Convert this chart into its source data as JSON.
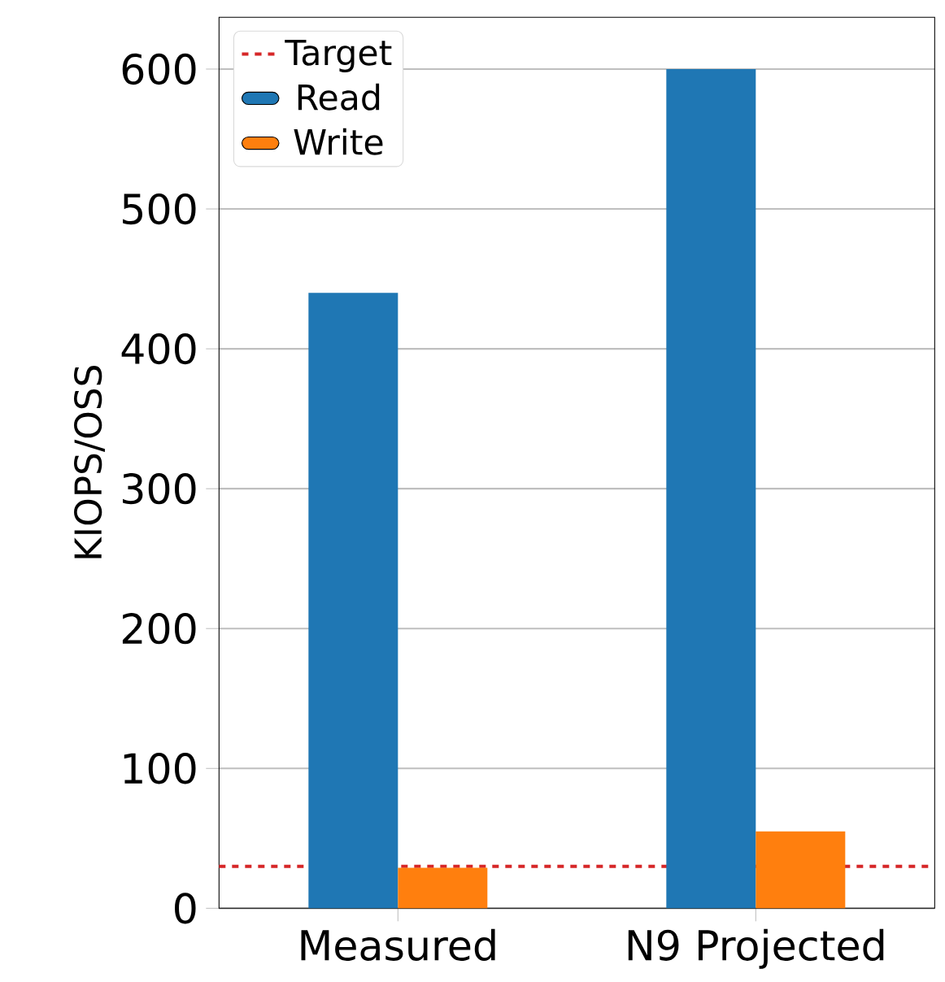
{
  "chart_data": {
    "type": "bar",
    "ylabel": "KIOPS/OSS",
    "categories": [
      "Measured",
      "N9 Projected"
    ],
    "series": [
      {
        "name": "Read",
        "color": "#1f77b4",
        "values": [
          440,
          600
        ]
      },
      {
        "name": "Write",
        "color": "#ff7f0e",
        "values": [
          29,
          55
        ]
      }
    ],
    "ref_lines": [
      {
        "axis": "y",
        "value": 30,
        "label": "Target",
        "color": "#d62728",
        "line_style": "dashed"
      }
    ],
    "ylim": [
      0,
      637
    ],
    "yticks": [
      0,
      100,
      200,
      300,
      400,
      500,
      600
    ],
    "grid": "y",
    "legend": "top left"
  }
}
